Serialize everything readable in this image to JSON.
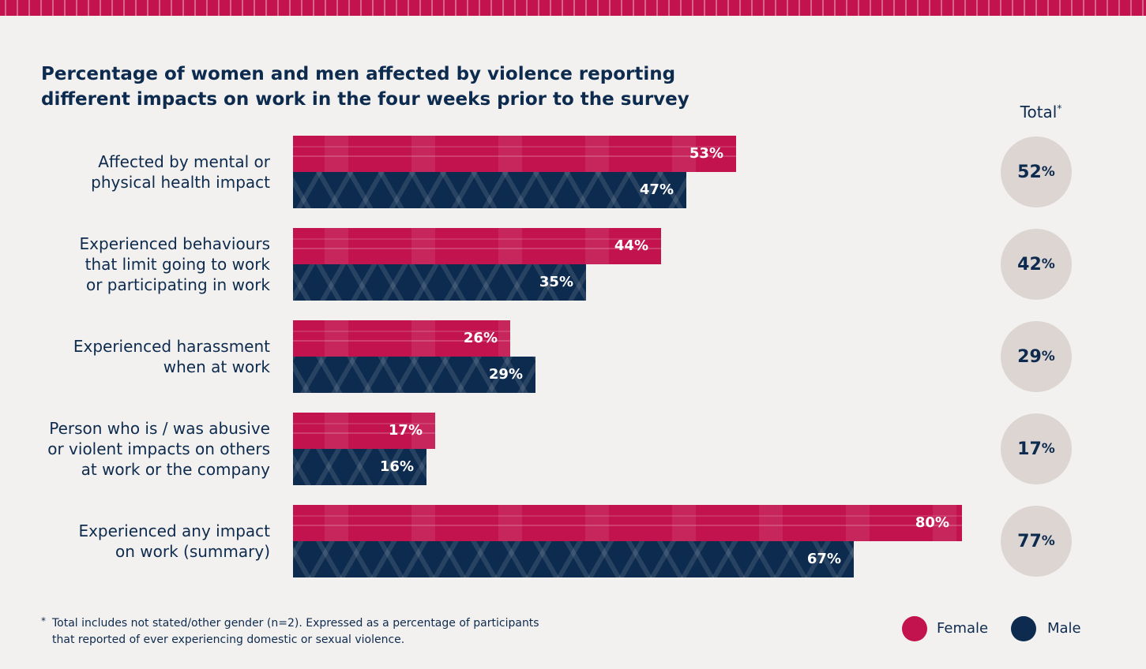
{
  "title": "Percentage of women and men affected by violence reporting different impacts on work in the four weeks prior to the survey",
  "total_header": "Total",
  "total_header_mark": "*",
  "colors": {
    "female": "#c2134f",
    "male": "#0d2b4e",
    "total_circle": "#dcd5d2",
    "background": "#f3f1ef"
  },
  "chart_data": {
    "type": "bar",
    "orientation": "horizontal",
    "title": "Percentage of women and men affected by violence reporting different impacts on work in the four weeks prior to the survey",
    "categories": [
      "Affected by mental or physical health impact",
      "Experienced behaviours that limit going to work or participating in work",
      "Experienced harassment when at work",
      "Person who is / was abusive or violent impacts on others at work or the company",
      "Experienced any impact on work (summary)"
    ],
    "series": [
      {
        "name": "Female",
        "values": [
          53,
          44,
          26,
          17,
          80
        ]
      },
      {
        "name": "Male",
        "values": [
          47,
          35,
          29,
          16,
          67
        ]
      }
    ],
    "totals": [
      52,
      42,
      29,
      17,
      77
    ],
    "xlim": [
      0,
      100
    ],
    "grid": false,
    "legend": "bottom-right"
  },
  "category_lines": [
    [
      "Affected by mental or",
      "physical health impact"
    ],
    [
      "Experienced behaviours",
      "that limit going to work",
      "or participating in work"
    ],
    [
      "Experienced harassment",
      "when at work"
    ],
    [
      "Person who is / was abusive",
      "or violent impacts on others",
      "at work or the company"
    ],
    [
      "Experienced any impact",
      "on work (summary)"
    ]
  ],
  "legend": {
    "female": "Female",
    "male": "Male"
  },
  "footnote": {
    "mark": "*",
    "text": "Total includes not stated/other gender (n=2). Expressed as a percentage of participants that reported of ever experiencing domestic or sexual violence."
  }
}
